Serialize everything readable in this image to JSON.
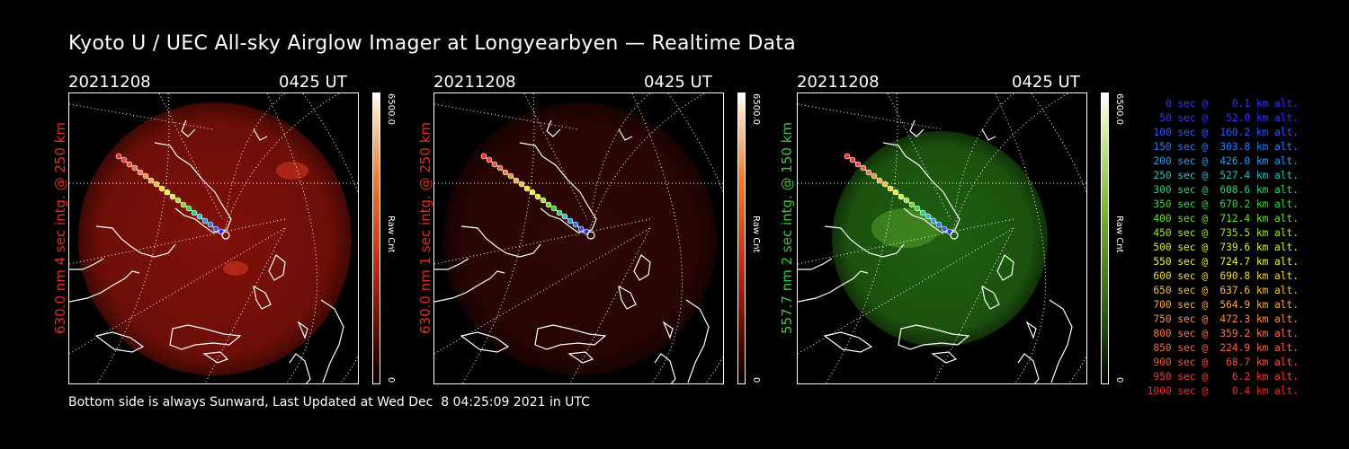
{
  "title": "Kyoto U / UEC All-sky Airglow Imager at Longyearbyen — Realtime Data",
  "footer": "Bottom side is always Sunward, Last Updated at Wed Dec  8 04:25:09 2021 in UTC",
  "panels": [
    {
      "date": "20211208",
      "time": "0425 UT",
      "label": "630.0 nm 4 sec intg. @ 250 km",
      "label_color": "#e0301c",
      "scale_max": "6500.0",
      "scale_min": "0",
      "scale_unit": "Raw Cnt",
      "tint": "red",
      "intensity": 0.85
    },
    {
      "date": "20211208",
      "time": "0425 UT",
      "label": "630.0 nm 1 sec intg. @ 250 km",
      "label_color": "#e0301c",
      "scale_max": "6500.0",
      "scale_min": "0",
      "scale_unit": "Raw Cnt",
      "tint": "red",
      "intensity": 0.3
    },
    {
      "date": "20211208",
      "time": "0425 UT",
      "label": "557.7 nm 2 sec intg. @ 150 km",
      "label_color": "#3cc83c",
      "scale_max": "6500.0",
      "scale_min": "0",
      "scale_unit": "Raw Cnt",
      "tint": "green",
      "intensity": 0.8
    }
  ],
  "legend": [
    {
      "text": "0 sec @    0.1 km alt.",
      "color": "#3232ff"
    },
    {
      "text": "50 sec @   52.0 km alt.",
      "color": "#3232ff"
    },
    {
      "text": "100 sec @  160.2 km alt.",
      "color": "#2c58ff"
    },
    {
      "text": "150 sec @  303.8 km alt.",
      "color": "#2a78ff"
    },
    {
      "text": "200 sec @  426.0 km alt.",
      "color": "#2a9ee8"
    },
    {
      "text": "250 sec @  527.4 km alt.",
      "color": "#28c0c8"
    },
    {
      "text": "300 sec @  608.6 km alt.",
      "color": "#2ed07a"
    },
    {
      "text": "350 sec @  670.2 km alt.",
      "color": "#3cd83c"
    },
    {
      "text": "400 sec @  712.4 km alt.",
      "color": "#6ee02c"
    },
    {
      "text": "450 sec @  735.5 km alt.",
      "color": "#a4e82c"
    },
    {
      "text": "500 sec @  739.6 km alt.",
      "color": "#d4f02e"
    },
    {
      "text": "550 sec @  724.7 km alt.",
      "color": "#f0f030"
    },
    {
      "text": "600 sec @  690.8 km alt.",
      "color": "#f8d838"
    },
    {
      "text": "650 sec @  637.6 km alt.",
      "color": "#f8c040"
    },
    {
      "text": "700 sec @  564.9 km alt.",
      "color": "#f8a848"
    },
    {
      "text": "750 sec @  472.3 km alt.",
      "color": "#f89048"
    },
    {
      "text": "800 sec @  359.2 km alt.",
      "color": "#f87848"
    },
    {
      "text": "850 sec @  224.9 km alt.",
      "color": "#f86440"
    },
    {
      "text": "900 sec @   68.7 km alt.",
      "color": "#f85038"
    },
    {
      "text": "950 sec @    6.2 km alt.",
      "color": "#f83c30"
    },
    {
      "text": "1000 sec @    0.4 km alt.",
      "color": "#f02c28"
    }
  ]
}
